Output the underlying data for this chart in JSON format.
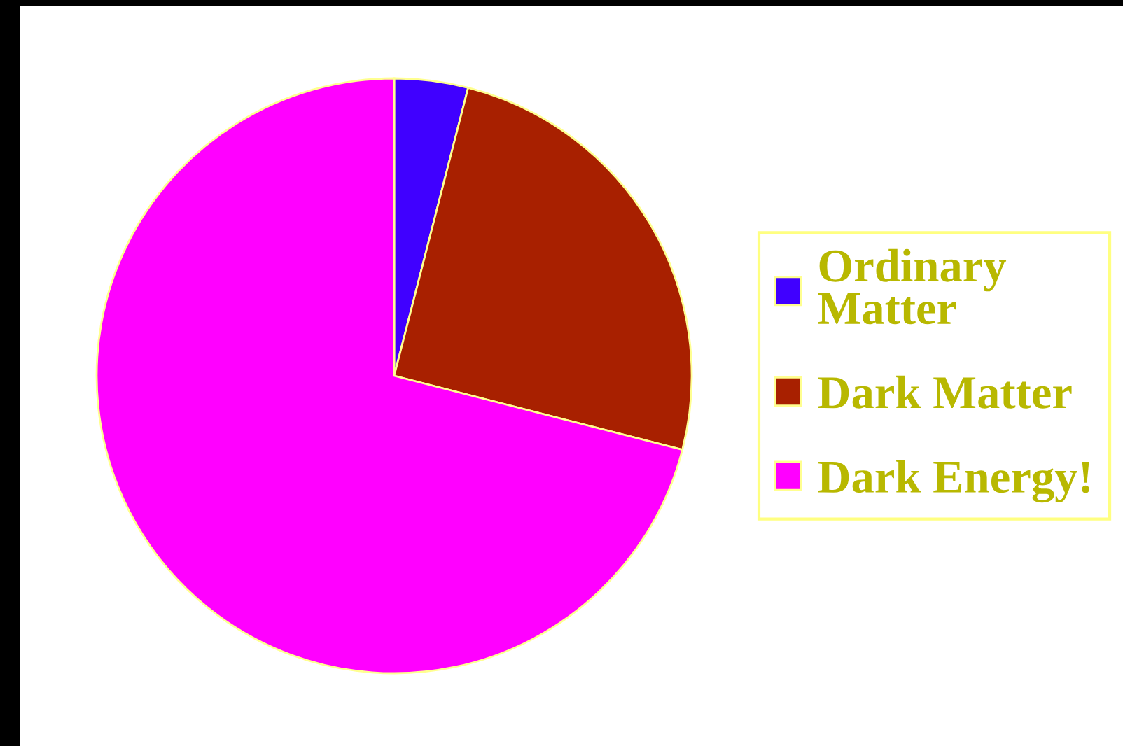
{
  "chart_data": {
    "type": "pie",
    "categories": [
      "Ordinary Matter",
      "Dark Matter",
      "Dark Energy!"
    ],
    "values": [
      4,
      25,
      71
    ],
    "colors": [
      "#4000ff",
      "#a82000",
      "#ff00ff"
    ],
    "legend": "right"
  }
}
